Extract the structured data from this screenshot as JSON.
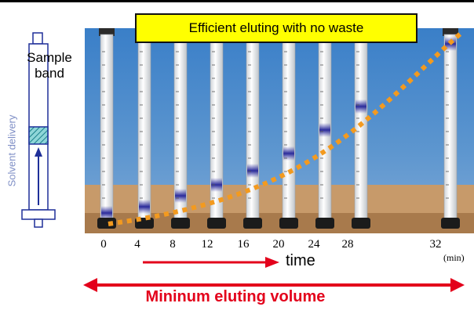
{
  "callout": "Efficient eluting with no waste",
  "diagram": {
    "sample_label": "Sample\nband",
    "solvent_label": "Solvent delivery"
  },
  "timeline": {
    "ticks": [
      "0",
      "4",
      "8",
      "12",
      "16",
      "20",
      "24",
      "28",
      "32"
    ],
    "unit": "(min)",
    "time_label": "time"
  },
  "volume_label": "Mininum eluting volume",
  "colors": {
    "callout_bg": "#ffff00",
    "accent_red": "#e3001b",
    "elution_dots": "#f39a1f",
    "diagram_blue": "#1f2f99",
    "band_purple": "#3a3aa8"
  }
}
